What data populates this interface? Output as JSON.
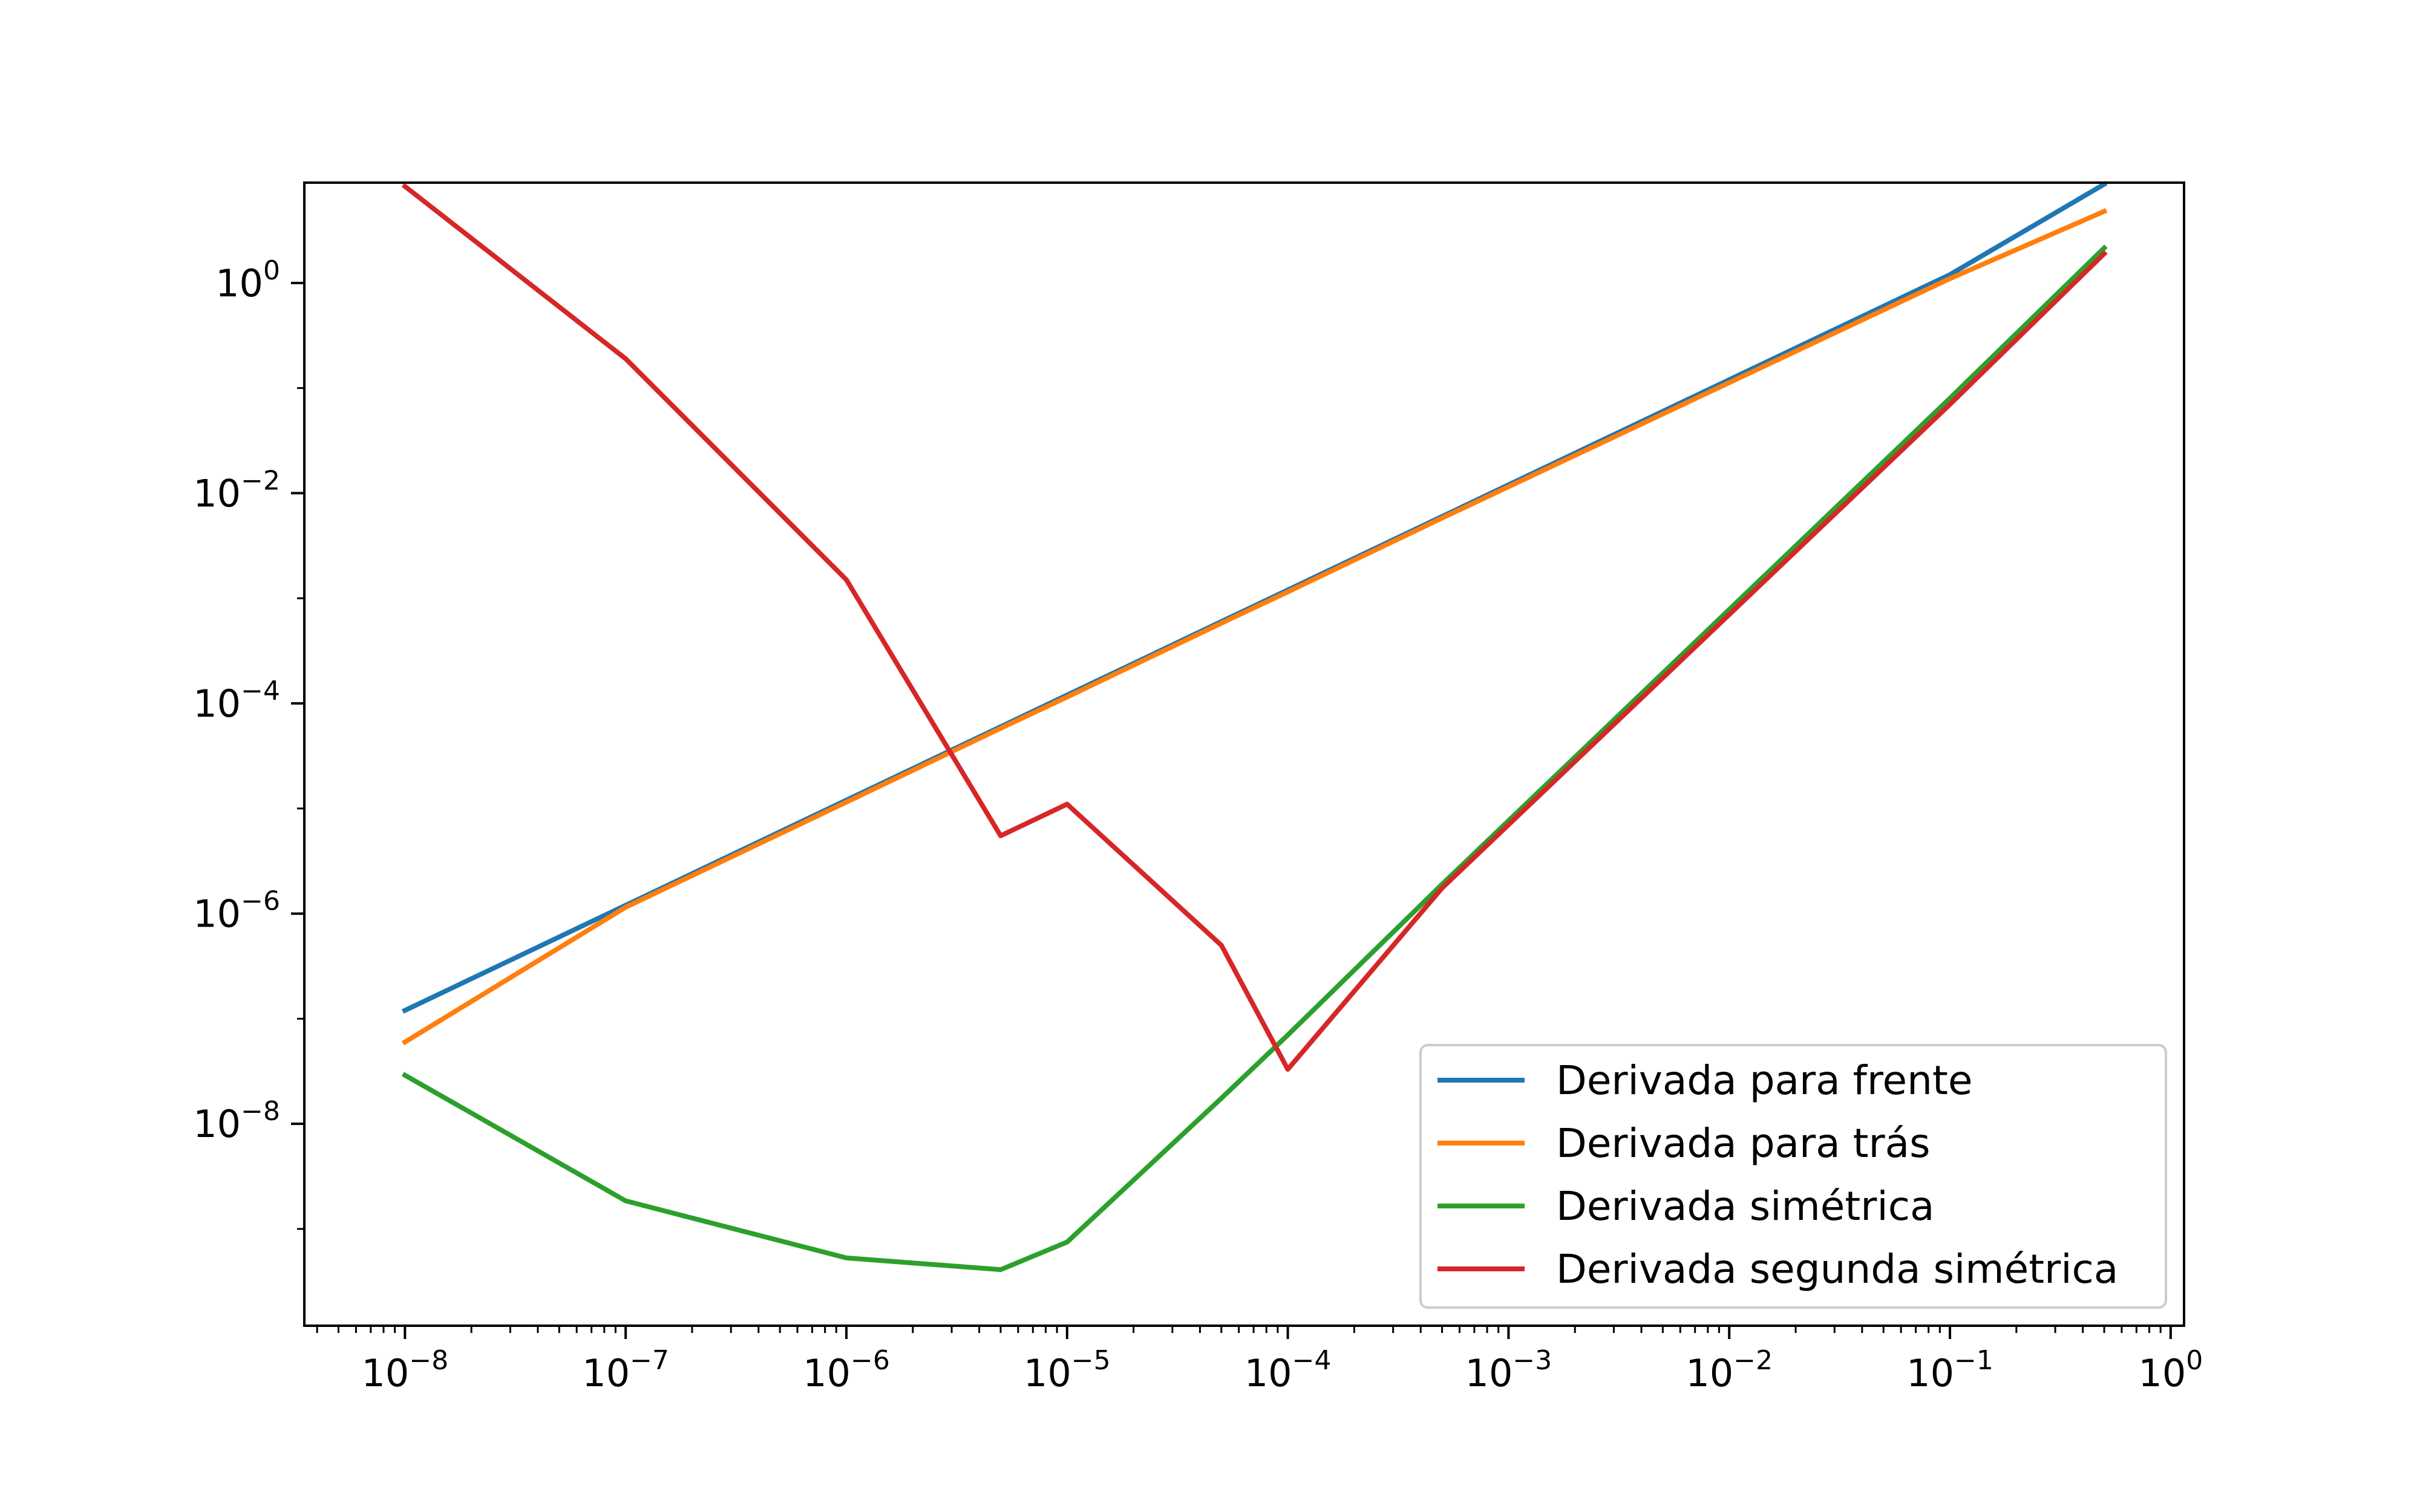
{
  "chart_data": {
    "type": "line",
    "title": "",
    "xlabel": "",
    "ylabel": "",
    "xscale": "log",
    "yscale": "log",
    "xlim": [
      3.5e-09,
      1.15
    ],
    "ylim": [
      1.2e-10,
      9.0
    ],
    "grid": false,
    "legend_position": "lower right",
    "x": [
      1e-08,
      1e-07,
      1e-06,
      5e-06,
      1e-05,
      5e-05,
      0.0001,
      0.0005,
      0.1,
      0.5
    ],
    "x_ticks": [
      {
        "value": 1e-08,
        "base": "10",
        "exp": "−8"
      },
      {
        "value": 1e-07,
        "base": "10",
        "exp": "−7"
      },
      {
        "value": 1e-06,
        "base": "10",
        "exp": "−6"
      },
      {
        "value": 1e-05,
        "base": "10",
        "exp": "−5"
      },
      {
        "value": 0.0001,
        "base": "10",
        "exp": "−4"
      },
      {
        "value": 0.001,
        "base": "10",
        "exp": "−3"
      },
      {
        "value": 0.01,
        "base": "10",
        "exp": "−2"
      },
      {
        "value": 0.1,
        "base": "10",
        "exp": "−1"
      },
      {
        "value": 1,
        "base": "10",
        "exp": "0"
      }
    ],
    "y_ticks": [
      {
        "value": 1,
        "base": "10",
        "exp": "0"
      },
      {
        "value": 0.01,
        "base": "10",
        "exp": "−2"
      },
      {
        "value": 0.0001,
        "base": "10",
        "exp": "−4"
      },
      {
        "value": 1e-06,
        "base": "10",
        "exp": "−6"
      },
      {
        "value": 1e-08,
        "base": "10",
        "exp": "−8"
      }
    ],
    "series": [
      {
        "name": "Derivada para frente",
        "color": "#1f77b4",
        "values": [
          1.2e-07,
          1.2e-06,
          1.2e-05,
          6e-05,
          0.00012,
          0.0006,
          0.0012,
          0.006,
          1.2,
          8.7
        ]
      },
      {
        "name": "Derivada para trás",
        "color": "#ff7f0e",
        "values": [
          6e-08,
          1.15e-06,
          1.15e-05,
          5.8e-05,
          0.000115,
          0.00058,
          0.00115,
          0.0058,
          1.1,
          4.8
        ]
      },
      {
        "name": "Derivada simétrica",
        "color": "#2ca02c",
        "values": [
          2.9e-08,
          1.85e-09,
          5.3e-10,
          4.1e-10,
          7.5e-10,
          1.75e-08,
          7e-08,
          1.9e-06,
          0.08,
          2.15
        ]
      },
      {
        "name": "Derivada segunda simétrica",
        "color": "#d62728",
        "values": [
          8.3,
          0.19,
          0.0015,
          5.5e-06,
          1.1e-05,
          5e-07,
          3.3e-08,
          1.75e-06,
          0.07,
          1.9
        ]
      }
    ]
  }
}
